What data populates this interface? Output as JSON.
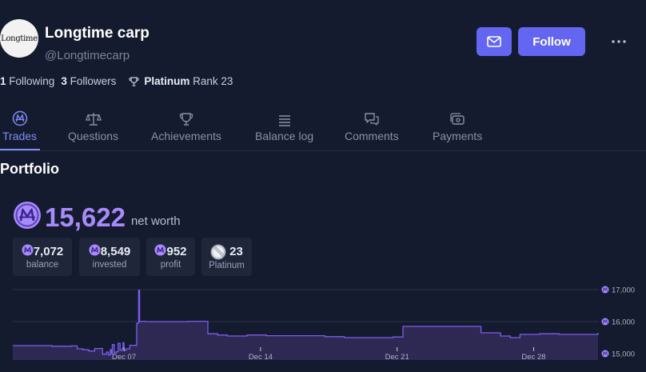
{
  "profile": {
    "avatar_text": "Longtime",
    "name": "Longtime carp",
    "handle": "@Longtimecarp",
    "follow_label": "Follow",
    "following_count": "1",
    "following_label": "Following",
    "followers_count": "3",
    "followers_label": "Followers",
    "league": "Platinum",
    "rank_label": "Rank 23"
  },
  "tabs": [
    {
      "label": "Trades",
      "icon": "mana-icon",
      "active": true
    },
    {
      "label": "Questions",
      "icon": "scale-icon"
    },
    {
      "label": "Achievements",
      "icon": "trophy-icon"
    },
    {
      "label": "Balance log",
      "icon": "list-icon"
    },
    {
      "label": "Comments",
      "icon": "chat-icon"
    },
    {
      "label": "Payments",
      "icon": "payment-icon"
    }
  ],
  "portfolio": {
    "title": "Portfolio",
    "net_worth": "15,622",
    "net_worth_label": "net worth",
    "cards": [
      {
        "value": "7,072",
        "label": "balance",
        "icon": "mana-coin-icon"
      },
      {
        "value": "8,549",
        "label": "invested",
        "icon": "mana-coin-icon"
      },
      {
        "value": "952",
        "label": "profit",
        "icon": "mana-coin-icon"
      },
      {
        "value": "23",
        "label": "Platinum",
        "icon": "platinum-medal-icon"
      }
    ]
  },
  "colors": {
    "background": "#141b2e",
    "accent": "#6366f1",
    "mana": "#a78bfa",
    "chart_fill": "#2f2a55",
    "chart_line": "#7c5cf0"
  },
  "chart_data": {
    "type": "area",
    "x_tick_labels": [
      "Dec 07",
      "Dec 14",
      "Dec 21",
      "Dec 28"
    ],
    "y_tick_labels": [
      "17,000",
      "16,000",
      "15,000"
    ],
    "ylim": [
      14800,
      17300
    ],
    "x": [
      0,
      1,
      2,
      3,
      3.3,
      3.6,
      3.9,
      4.2,
      4.6,
      4.8,
      4.9,
      5.0,
      5.05,
      5.1,
      5.2,
      5.3,
      5.4,
      5.5,
      5.6,
      5.65,
      5.7,
      5.8,
      6.0,
      6.3,
      6.35,
      6.45,
      6.5,
      6.6,
      6.8,
      7.0,
      8.0,
      8.5,
      9.0,
      10.0,
      10.5,
      11.0,
      12.0,
      13.0,
      14.0,
      15.0,
      16.0,
      17.0,
      18.0,
      19.0,
      19.5,
      20.0,
      21.0,
      22.0,
      23.0,
      24.0,
      25.0,
      25.5,
      26.0,
      27.0,
      28.0,
      29.0,
      30.0
    ],
    "values": [
      15250,
      15250,
      15230,
      15240,
      15150,
      15120,
      15080,
      15160,
      14980,
      15050,
      14960,
      15120,
      15000,
      15280,
      15020,
      15060,
      15320,
      15100,
      15150,
      15340,
      15100,
      15150,
      15260,
      15250,
      15950,
      16980,
      16000,
      16010,
      16000,
      16000,
      16000,
      16000,
      16010,
      15620,
      15580,
      15550,
      15580,
      15560,
      15560,
      15560,
      15530,
      15500,
      15500,
      15500,
      15520,
      15850,
      15850,
      15850,
      15850,
      15650,
      15550,
      15500,
      15600,
      15620,
      15600,
      15600,
      15650
    ],
    "tick_x": [
      5.7,
      12.7,
      19.7,
      26.7
    ]
  }
}
